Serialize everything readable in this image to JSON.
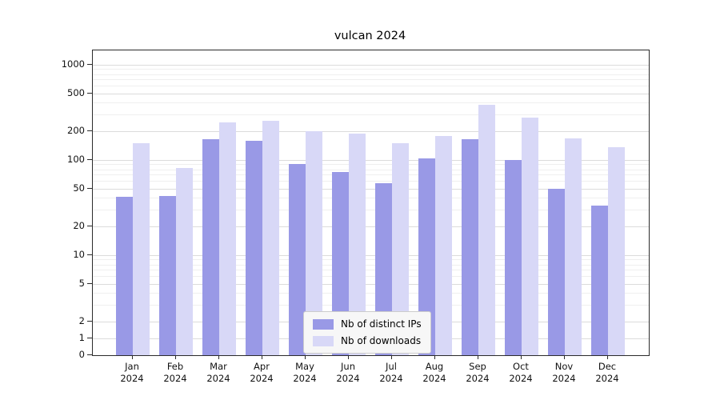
{
  "title": "vulcan 2024",
  "chart_data": {
    "type": "bar",
    "title": "vulcan 2024",
    "categories": [
      "Jan",
      "Feb",
      "Mar",
      "Apr",
      "May",
      "Jun",
      "Jul",
      "Aug",
      "Sep",
      "Oct",
      "Nov",
      "Dec"
    ],
    "year_label": "2024",
    "series": [
      {
        "name": "Nb of distinct IPs",
        "color": "#9999e6",
        "values": [
          41,
          42,
          165,
          160,
          90,
          75,
          57,
          103,
          165,
          100,
          50,
          33
        ]
      },
      {
        "name": "Nb of downloads",
        "color": "#d8d8f7",
        "values": [
          150,
          82,
          250,
          260,
          200,
          190,
          150,
          180,
          380,
          280,
          168,
          135
        ]
      }
    ],
    "xlabel": "",
    "ylabel": "",
    "yscale": "symlog",
    "ylim": [
      0,
      1400
    ],
    "yticks": [
      0,
      1,
      2,
      5,
      10,
      20,
      50,
      100,
      200,
      500,
      1000
    ],
    "minor_yticks": [
      3,
      4,
      6,
      7,
      8,
      9,
      30,
      40,
      60,
      70,
      80,
      90,
      300,
      400,
      600,
      700,
      800,
      900
    ],
    "grid": true,
    "legend_position": "lower center"
  }
}
